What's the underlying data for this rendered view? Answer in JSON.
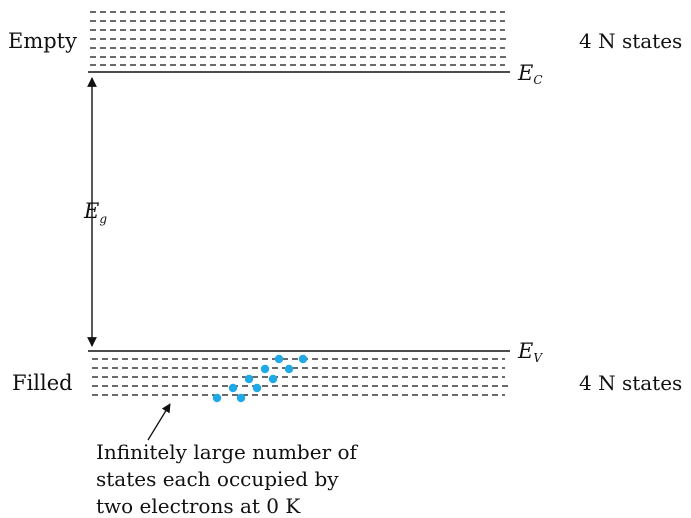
{
  "labels": {
    "empty": "Empty",
    "filled": "Filled",
    "top_states": "4 N states",
    "bottom_states": "4 N states",
    "ec_main": "E",
    "ec_sub": "C",
    "ev_main": "E",
    "ev_sub": "V",
    "eg_main": "E",
    "eg_sub": "g"
  },
  "annotation": {
    "line1": "Infinitely large number of",
    "line2": "states each occupied by",
    "line3": "two electrons at 0 K"
  },
  "colors": {
    "electron": "#1fa9e6",
    "line": "#111111"
  }
}
